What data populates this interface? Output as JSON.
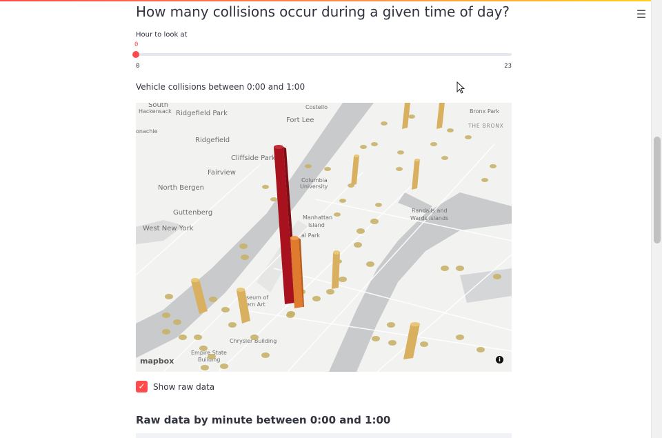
{
  "page": {
    "title": "How many collisions occur during a given time of day?",
    "menu_icon": "hamburger-menu-icon"
  },
  "slider": {
    "label": "Hour to look at",
    "value": 0,
    "value_text": "0",
    "min_text": "0",
    "max_text": "23",
    "min": 0,
    "max": 23
  },
  "map": {
    "caption": "Vehicle collisions between 0:00 and 1:00",
    "attribution": "mapbox",
    "info_icon": "info-icon",
    "labels": [
      {
        "text": "South",
        "cls": "small"
      },
      {
        "text": "Hackensack",
        "cls": "small"
      },
      {
        "text": "Ridgefield Park",
        "cls": ""
      },
      {
        "text": "Fort Lee",
        "cls": ""
      },
      {
        "text": "Bronx Park",
        "cls": "small"
      },
      {
        "text": "THE BRONX",
        "cls": "caps"
      },
      {
        "text": "onachie",
        "cls": "small"
      },
      {
        "text": "Ridgefield",
        "cls": ""
      },
      {
        "text": "Cliffside Park",
        "cls": ""
      },
      {
        "text": "Fairview",
        "cls": ""
      },
      {
        "text": "Columbia",
        "cls": "small"
      },
      {
        "text": "University",
        "cls": "small"
      },
      {
        "text": "North Bergen",
        "cls": ""
      },
      {
        "text": "Guttenberg",
        "cls": ""
      },
      {
        "text": "Randalls and",
        "cls": "small"
      },
      {
        "text": "Wards Islands",
        "cls": "small"
      },
      {
        "text": "Manhattan",
        "cls": "small"
      },
      {
        "text": "Island",
        "cls": "small"
      },
      {
        "text": "West New York",
        "cls": ""
      },
      {
        "text": "al Park",
        "cls": "small"
      },
      {
        "text": "seum of",
        "cls": "small"
      },
      {
        "text": "ern Art",
        "cls": "small"
      },
      {
        "text": "Chrysler Building",
        "cls": "small"
      },
      {
        "text": "Empire State",
        "cls": "small"
      },
      {
        "text": "Building",
        "cls": "small"
      },
      {
        "text": "Costello",
        "cls": "small"
      }
    ]
  },
  "show_raw": {
    "label": "Show raw data",
    "checked": true
  },
  "raw_heading": "Raw data by minute between 0:00 and 1:00",
  "colors": {
    "accent": "#ff4b4b",
    "column_low": "#d8b060",
    "column_mid": "#e07a2e",
    "column_high": "#a8121e"
  }
}
